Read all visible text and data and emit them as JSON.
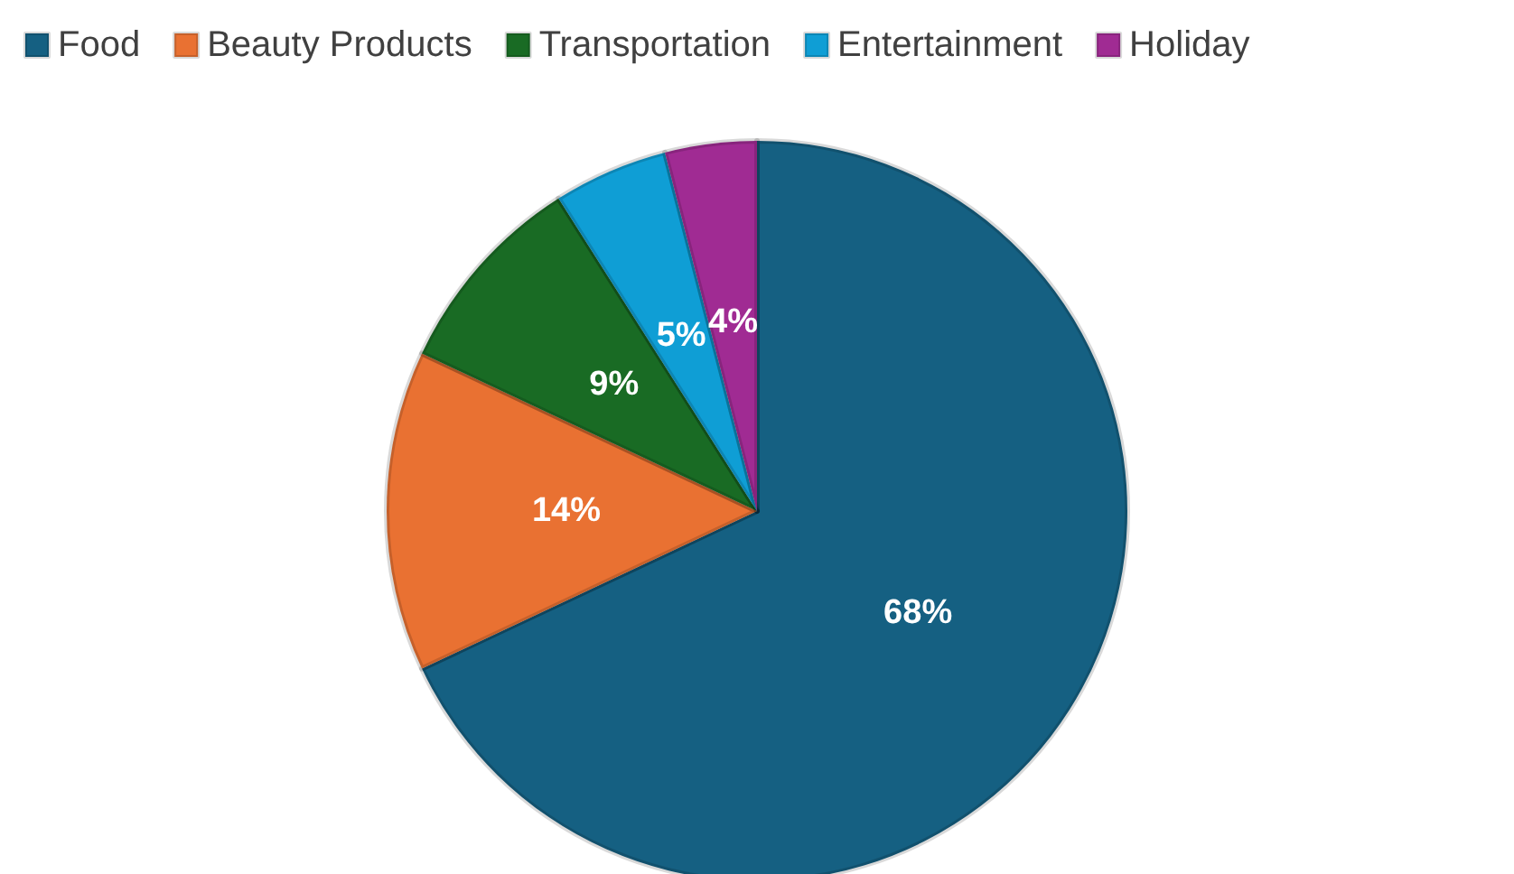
{
  "chart_data": {
    "type": "pie",
    "categories": [
      "Food",
      "Beauty Products",
      "Transportation",
      "Entertainment",
      "Holiday"
    ],
    "values": [
      68,
      14,
      9,
      5,
      4
    ],
    "colors": [
      "#156082",
      "#e97132",
      "#196b24",
      "#0f9ed5",
      "#a02b93"
    ],
    "value_labels": [
      "68%",
      "14%",
      "9%",
      "5%",
      "4%"
    ],
    "legend": "top"
  }
}
